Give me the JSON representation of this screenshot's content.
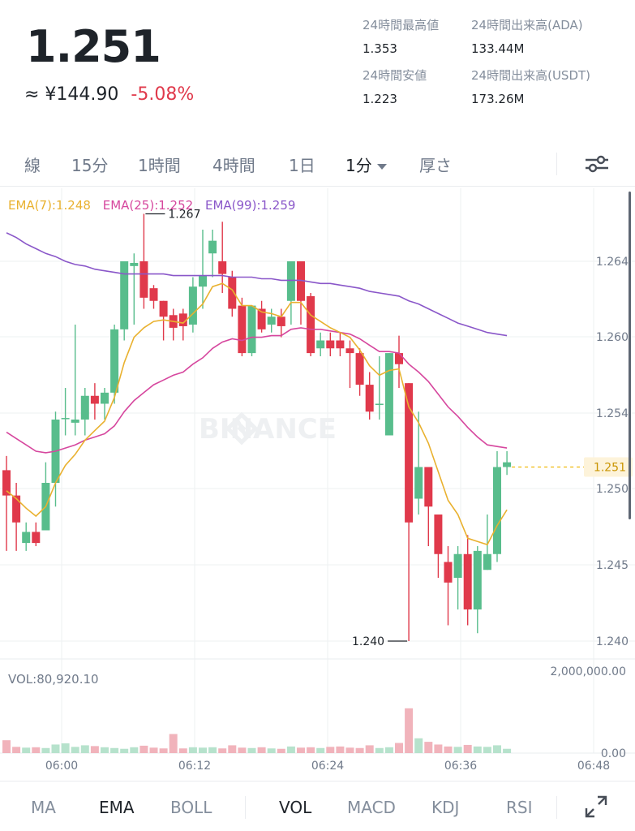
{
  "header": {
    "price": "1.251",
    "fiat_approx": "≈ ¥144.90",
    "change": "-5.08%",
    "stats": [
      {
        "label": "24時間最高値",
        "value": "1.353"
      },
      {
        "label": "24時間出来高(ADA)",
        "value": "133.44M"
      },
      {
        "label": "24時間安値",
        "value": "1.223"
      },
      {
        "label": "24時間出来高(USDT)",
        "value": "173.26M"
      }
    ]
  },
  "intervals": {
    "items": [
      "線",
      "15分",
      "1時間",
      "4時間",
      "1日",
      "1分",
      "厚さ"
    ],
    "active": "1分"
  },
  "ema_legend": [
    {
      "label": "EMA(7):1.248",
      "color": "#e9b12f"
    },
    {
      "label": "EMA(25):1.252",
      "color": "#d6479e"
    },
    {
      "label": "EMA(99):1.259",
      "color": "#8a57c9"
    }
  ],
  "watermark": "BINANCE",
  "volume_label": "VOL:80,920.10",
  "colors": {
    "up": "#58bd8c",
    "down": "#e0394b",
    "up_vol": "#b6e2cc",
    "down_vol": "#f1b3bb",
    "ema7": "#e9b12f",
    "ema25": "#d6479e",
    "ema99": "#8a57c9",
    "grid": "#eef0f2",
    "current_price": "#f0b90b"
  },
  "indicators": {
    "items": [
      "MA",
      "EMA",
      "BOLL",
      "VOL",
      "MACD",
      "KDJ",
      "RSI"
    ],
    "active": [
      "EMA",
      "VOL"
    ]
  },
  "chart_data": {
    "type": "candlestick",
    "y_ticks": [
      "1.264",
      "1.260",
      "1.254",
      "1.250",
      "1.245",
      "1.240"
    ],
    "ylim": [
      1.238,
      1.27
    ],
    "x_ticks": [
      "06:00",
      "06:12",
      "06:24",
      "06:36",
      "06:48"
    ],
    "current_price_label": "1.251",
    "high_marker": "1.267",
    "low_marker": "1.240",
    "volume_ticks": [
      "2,000,000.00",
      "0.00"
    ],
    "candles": [
      {
        "o": 1.2508,
        "h": 1.2517,
        "l": 1.2457,
        "c": 1.2492
      },
      {
        "o": 1.2492,
        "h": 1.25,
        "l": 1.2457,
        "c": 1.2475
      },
      {
        "o": 1.2462,
        "h": 1.2475,
        "l": 1.2457,
        "c": 1.2469
      },
      {
        "o": 1.2469,
        "h": 1.2475,
        "l": 1.246,
        "c": 1.2462
      },
      {
        "o": 1.247,
        "h": 1.2513,
        "l": 1.247,
        "c": 1.25
      },
      {
        "o": 1.25,
        "h": 1.2545,
        "l": 1.2485,
        "c": 1.254
      },
      {
        "o": 1.2541,
        "h": 1.256,
        "l": 1.253,
        "c": 1.2541
      },
      {
        "o": 1.2538,
        "h": 1.26,
        "l": 1.253,
        "c": 1.254
      },
      {
        "o": 1.254,
        "h": 1.256,
        "l": 1.253,
        "c": 1.2555
      },
      {
        "o": 1.2555,
        "h": 1.2563,
        "l": 1.254,
        "c": 1.255
      },
      {
        "o": 1.255,
        "h": 1.256,
        "l": 1.254,
        "c": 1.2557
      },
      {
        "o": 1.2557,
        "h": 1.26,
        "l": 1.255,
        "c": 1.2597
      },
      {
        "o": 1.2597,
        "h": 1.264,
        "l": 1.259,
        "c": 1.264
      },
      {
        "o": 1.2637,
        "h": 1.2645,
        "l": 1.26,
        "c": 1.2639
      },
      {
        "o": 1.264,
        "h": 1.267,
        "l": 1.261,
        "c": 1.2617
      },
      {
        "o": 1.2623,
        "h": 1.2625,
        "l": 1.261,
        "c": 1.2615
      },
      {
        "o": 1.2615,
        "h": 1.2615,
        "l": 1.259,
        "c": 1.2605
      },
      {
        "o": 1.2606,
        "h": 1.261,
        "l": 1.259,
        "c": 1.2598
      },
      {
        "o": 1.2607,
        "h": 1.261,
        "l": 1.259,
        "c": 1.2599
      },
      {
        "o": 1.26,
        "h": 1.263,
        "l": 1.2595,
        "c": 1.2624
      },
      {
        "o": 1.2624,
        "h": 1.266,
        "l": 1.261,
        "c": 1.2631
      },
      {
        "o": 1.2645,
        "h": 1.266,
        "l": 1.263,
        "c": 1.2653
      },
      {
        "o": 1.264,
        "h": 1.2665,
        "l": 1.262,
        "c": 1.2632
      },
      {
        "o": 1.263,
        "h": 1.2634,
        "l": 1.2605,
        "c": 1.261
      },
      {
        "o": 1.2612,
        "h": 1.2617,
        "l": 1.258,
        "c": 1.2582
      },
      {
        "o": 1.2582,
        "h": 1.261,
        "l": 1.258,
        "c": 1.2612
      },
      {
        "o": 1.261,
        "h": 1.2615,
        "l": 1.2595,
        "c": 1.2597
      },
      {
        "o": 1.26,
        "h": 1.261,
        "l": 1.2595,
        "c": 1.2605
      },
      {
        "o": 1.2605,
        "h": 1.261,
        "l": 1.2592,
        "c": 1.2599
      },
      {
        "o": 1.2615,
        "h": 1.264,
        "l": 1.26,
        "c": 1.264
      },
      {
        "o": 1.264,
        "h": 1.264,
        "l": 1.26,
        "c": 1.2615
      },
      {
        "o": 1.2618,
        "h": 1.262,
        "l": 1.258,
        "c": 1.2582
      },
      {
        "o": 1.2585,
        "h": 1.2595,
        "l": 1.258,
        "c": 1.259
      },
      {
        "o": 1.259,
        "h": 1.2595,
        "l": 1.258,
        "c": 1.2585
      },
      {
        "o": 1.259,
        "h": 1.2595,
        "l": 1.258,
        "c": 1.2585
      },
      {
        "o": 1.2585,
        "h": 1.259,
        "l": 1.256,
        "c": 1.2582
      },
      {
        "o": 1.2582,
        "h": 1.2585,
        "l": 1.2555,
        "c": 1.2562
      },
      {
        "o": 1.2562,
        "h": 1.257,
        "l": 1.254,
        "c": 1.2545
      },
      {
        "o": 1.255,
        "h": 1.258,
        "l": 1.254,
        "c": 1.255
      },
      {
        "o": 1.253,
        "h": 1.2582,
        "l": 1.253,
        "c": 1.2582
      },
      {
        "o": 1.2582,
        "h": 1.2593,
        "l": 1.256,
        "c": 1.2575
      },
      {
        "o": 1.2563,
        "h": 1.2563,
        "l": 1.24,
        "c": 1.2475
      },
      {
        "o": 1.249,
        "h": 1.2545,
        "l": 1.248,
        "c": 1.251
      },
      {
        "o": 1.251,
        "h": 1.251,
        "l": 1.246,
        "c": 1.2485
      },
      {
        "o": 1.248,
        "h": 1.248,
        "l": 1.244,
        "c": 1.2455
      },
      {
        "o": 1.245,
        "h": 1.246,
        "l": 1.241,
        "c": 1.2437
      },
      {
        "o": 1.244,
        "h": 1.246,
        "l": 1.242,
        "c": 1.2455
      },
      {
        "o": 1.2455,
        "h": 1.2467,
        "l": 1.241,
        "c": 1.242
      },
      {
        "o": 1.242,
        "h": 1.246,
        "l": 1.2405,
        "c": 1.2457
      },
      {
        "o": 1.2445,
        "h": 1.248,
        "l": 1.2445,
        "c": 1.2455
      },
      {
        "o": 1.2455,
        "h": 1.252,
        "l": 1.245,
        "c": 1.251
      },
      {
        "o": 1.251,
        "h": 1.252,
        "l": 1.2505,
        "c": 1.2513
      }
    ],
    "ema7": [
      1.2495,
      1.249,
      1.2484,
      1.2479,
      1.2485,
      1.25,
      1.2511,
      1.2518,
      1.2527,
      1.2533,
      1.2539,
      1.2554,
      1.2576,
      1.2592,
      1.2598,
      1.2602,
      1.2603,
      1.2602,
      1.2601,
      1.2607,
      1.2613,
      1.2624,
      1.2626,
      1.2622,
      1.2612,
      1.2612,
      1.2608,
      1.2607,
      1.2605,
      1.2614,
      1.2614,
      1.2606,
      1.2602,
      1.2598,
      1.2595,
      1.2592,
      1.2584,
      1.2574,
      1.2568,
      1.2571,
      1.2572,
      1.2548,
      1.2538,
      1.2525,
      1.2507,
      1.2489,
      1.248,
      1.2465,
      1.2463,
      1.2461,
      1.2473,
      1.2483
    ],
    "ema25": [
      1.2532,
      1.2528,
      1.2524,
      1.252,
      1.2519,
      1.252,
      1.2522,
      1.2524,
      1.2527,
      1.2529,
      1.2531,
      1.2536,
      1.2545,
      1.2552,
      1.2557,
      1.2562,
      1.2565,
      1.2568,
      1.257,
      1.2575,
      1.2579,
      1.2585,
      1.2589,
      1.2591,
      1.259,
      1.2592,
      1.2592,
      1.2593,
      1.2593,
      1.2597,
      1.2598,
      1.2597,
      1.2597,
      1.2596,
      1.2595,
      1.2594,
      1.2591,
      1.2587,
      1.2583,
      1.2583,
      1.2582,
      1.2575,
      1.257,
      1.2564,
      1.2556,
      1.2548,
      1.2542,
      1.2535,
      1.2529,
      1.2524,
      1.2523,
      1.2522
    ],
    "ema99": [
      1.2658,
      1.2655,
      1.2651,
      1.2648,
      1.2645,
      1.2643,
      1.264,
      1.2638,
      1.2637,
      1.2635,
      1.2634,
      1.2633,
      1.2632,
      1.2632,
      1.2632,
      1.2632,
      1.2632,
      1.2631,
      1.2631,
      1.2631,
      1.2631,
      1.2631,
      1.2631,
      1.263,
      1.263,
      1.263,
      1.2629,
      1.2629,
      1.2628,
      1.2628,
      1.2628,
      1.2627,
      1.2626,
      1.2626,
      1.2625,
      1.2624,
      1.2623,
      1.2621,
      1.262,
      1.2619,
      1.2618,
      1.2615,
      1.2613,
      1.261,
      1.2607,
      1.2604,
      1.2601,
      1.2599,
      1.2597,
      1.2595,
      1.2594,
      1.2593
    ],
    "volumes": [
      330000,
      160000,
      140000,
      150000,
      130000,
      220000,
      250000,
      160000,
      200000,
      180000,
      150000,
      130000,
      110000,
      150000,
      190000,
      140000,
      120000,
      490000,
      120000,
      150000,
      140000,
      150000,
      120000,
      200000,
      140000,
      130000,
      150000,
      120000,
      110000,
      170000,
      140000,
      150000,
      130000,
      160000,
      170000,
      140000,
      130000,
      200000,
      130000,
      150000,
      260000,
      1150000,
      380000,
      290000,
      220000,
      170000,
      160000,
      210000,
      170000,
      160000,
      200000,
      110000
    ]
  }
}
